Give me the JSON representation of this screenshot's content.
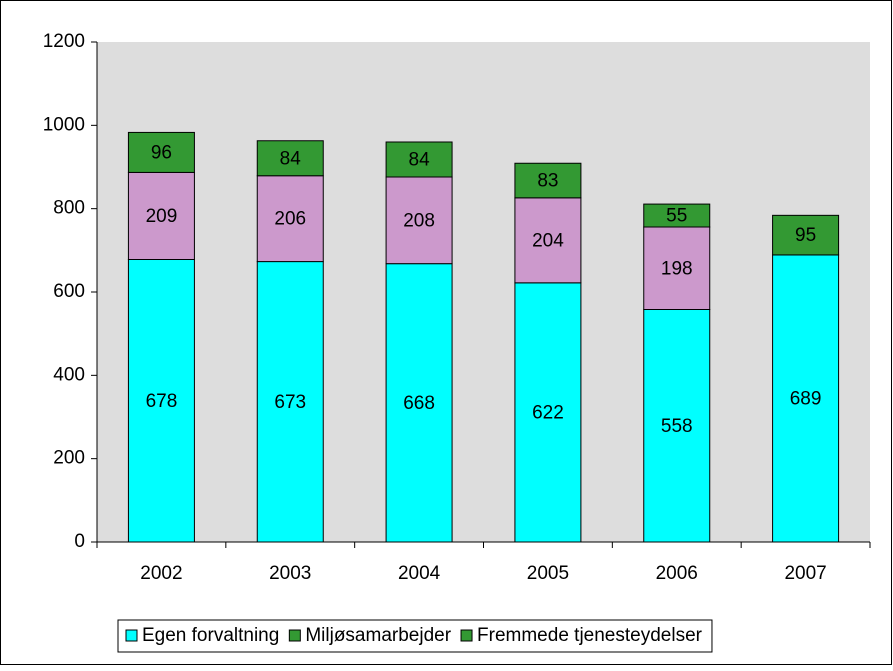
{
  "chart_data": {
    "type": "stacked_bar",
    "categories": [
      "2002",
      "2003",
      "2004",
      "2005",
      "2006",
      "2007"
    ],
    "series": [
      {
        "name": "Egen forvaltning",
        "color": "#00FFFF",
        "legend_color": "#00FFFF",
        "values": [
          678,
          673,
          668,
          622,
          558,
          689
        ]
      },
      {
        "name": "Miljøsamarbejder",
        "color": "#CC99CC",
        "legend_color": "#339933",
        "values": [
          209,
          206,
          208,
          204,
          198,
          null
        ]
      },
      {
        "name": "Fremmede tjenesteydelser",
        "color": "#339933",
        "legend_color": "#339933",
        "values": [
          96,
          84,
          84,
          83,
          55,
          95
        ]
      }
    ],
    "ylim": [
      0,
      1200
    ],
    "yticks": [
      0,
      200,
      400,
      600,
      800,
      1000,
      1200
    ],
    "plot_background": "#DDDDDD",
    "legend": "bottom"
  }
}
